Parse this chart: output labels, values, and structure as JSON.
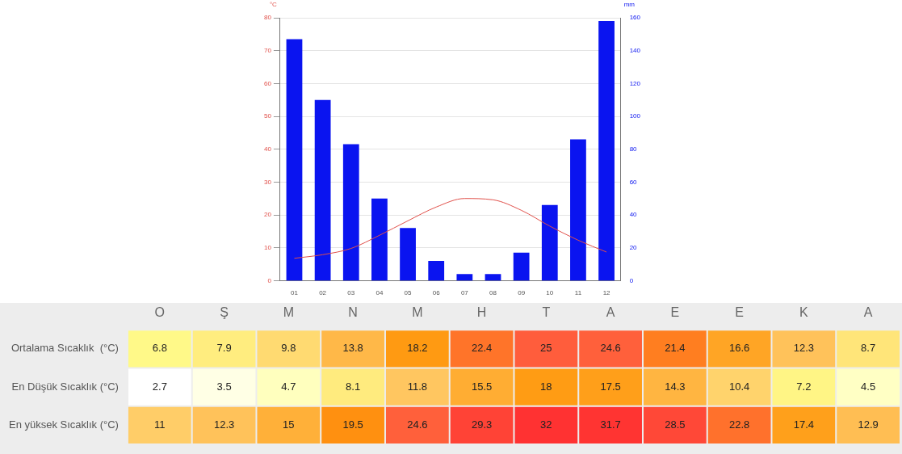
{
  "chart_data": [
    {
      "type": "bar",
      "ylabel": "°C",
      "y2label": "mm",
      "categories": [
        "01",
        "02",
        "03",
        "04",
        "05",
        "06",
        "07",
        "08",
        "09",
        "10",
        "11",
        "12"
      ],
      "series": [
        {
          "type": "bar",
          "axis": "y2",
          "color": "#0a14f0",
          "values": [
            147,
            110,
            83,
            50,
            32,
            12,
            4,
            4,
            17,
            46,
            86,
            158
          ]
        },
        {
          "type": "line",
          "axis": "y",
          "color": "#e0504a",
          "values": [
            6.8,
            7.9,
            9.8,
            13.8,
            18.2,
            22.4,
            25,
            24.6,
            21.4,
            16.6,
            12.3,
            8.7
          ]
        }
      ],
      "ylim": [
        0,
        80
      ],
      "yticks": [
        0,
        10,
        20,
        30,
        40,
        50,
        60,
        70,
        80
      ],
      "y2lim": [
        0,
        160
      ],
      "y2ticks": [
        0,
        20,
        40,
        60,
        80,
        100,
        120,
        140,
        160
      ],
      "grid": "y",
      "legend": false,
      "marker": "none"
    },
    {
      "type": "heatmap",
      "categories": [
        "O",
        "Ş",
        "M",
        "N",
        "M",
        "H",
        "T",
        "A",
        "E",
        "E",
        "K",
        "A"
      ],
      "y_categories": [
        "Ortalama Sıcaklık  (°C)",
        "En Düşük Sıcaklık (°C)",
        "En yüksek Sıcaklık (°C)"
      ],
      "cells": [
        [
          6.8,
          7.9,
          9.8,
          13.8,
          18.2,
          22.4,
          25,
          24.6,
          21.4,
          16.6,
          12.3,
          8.7
        ],
        [
          2.7,
          3.5,
          4.7,
          8.1,
          11.8,
          15.5,
          18,
          17.5,
          14.3,
          10.4,
          7.2,
          4.5
        ],
        [
          11,
          12.3,
          15,
          19.5,
          24.6,
          29.3,
          32,
          31.7,
          28.5,
          22.8,
          17.4,
          12.9
        ]
      ],
      "data_labels": true
    }
  ]
}
